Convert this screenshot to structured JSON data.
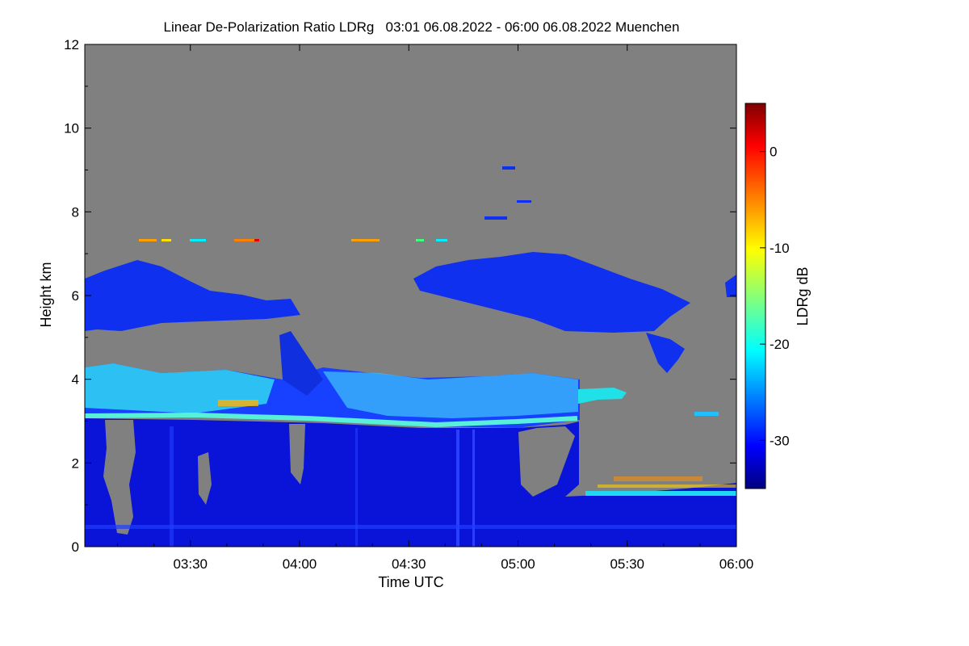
{
  "chart_data": {
    "type": "heatmap",
    "title": "Linear De-Polarization Ratio LDRg   03:01 06.08.2022 - 06:00 06.08.2022 Muenchen",
    "xlabel": "Time UTC",
    "ylabel": "Height km",
    "xlim_minutes_utc": [
      181,
      360
    ],
    "ylim": [
      0,
      12
    ],
    "x_ticks": [
      {
        "label": "03:30",
        "minute": 210
      },
      {
        "label": "04:00",
        "minute": 240
      },
      {
        "label": "04:30",
        "minute": 270
      },
      {
        "label": "05:00",
        "minute": 300
      },
      {
        "label": "05:30",
        "minute": 330
      },
      {
        "label": "06:00",
        "minute": 360
      }
    ],
    "y_ticks": [
      0,
      2,
      4,
      6,
      8,
      10,
      12
    ],
    "colorbar": {
      "label": "LDRg dB",
      "range": [
        -35,
        5
      ],
      "ticks": [
        0,
        -10,
        -20,
        -30
      ],
      "colormap": "jet"
    },
    "no_signal_color": "#808080",
    "features": [
      {
        "name": "upper cloud layer A",
        "t_start": 181,
        "t_end": 236,
        "h_bottom": 5.0,
        "h_top": 6.6,
        "ldr_db": -31
      },
      {
        "name": "upper cloud layer B",
        "t_start": 271,
        "t_end": 347,
        "h_bottom": 5.0,
        "h_top": 6.9,
        "ldr_db": -31
      },
      {
        "name": "mid cloud layer",
        "t_start": 181,
        "t_end": 328,
        "h_bottom": 2.9,
        "h_top": 4.5,
        "ldr_db": -22
      },
      {
        "name": "boundary layer",
        "t_start": 181,
        "t_end": 360,
        "h_bottom": 0.0,
        "h_top": 2.9,
        "ldr_db": -32
      }
    ]
  }
}
